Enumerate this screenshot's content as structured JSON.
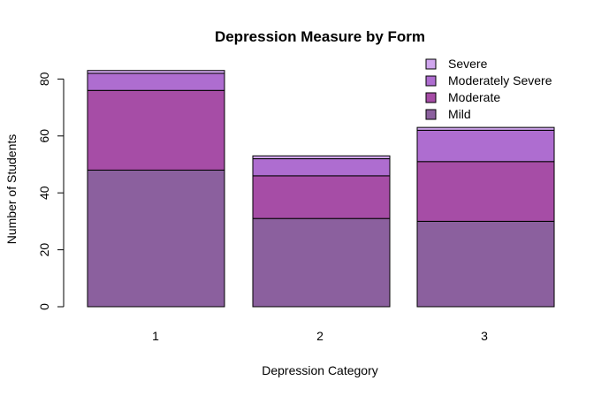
{
  "chart_data": {
    "type": "bar",
    "stacked": true,
    "title": "Depression Measure by Form",
    "xlabel": "Depression Category",
    "ylabel": "Number of Students",
    "categories": [
      "1",
      "2",
      "3"
    ],
    "ylim": [
      0,
      85
    ],
    "yticks": [
      "0",
      "20",
      "40",
      "60",
      "80"
    ],
    "series": [
      {
        "name": "Mild",
        "values": [
          48,
          31,
          30
        ],
        "color": "#8B609E"
      },
      {
        "name": "Moderate",
        "values": [
          28,
          15,
          21
        ],
        "color": "#A64DA6"
      },
      {
        "name": "Moderately Severe",
        "values": [
          6,
          6,
          11
        ],
        "color": "#AE6DD0"
      },
      {
        "name": "Severe",
        "values": [
          1,
          1,
          1
        ],
        "color": "#D0A6EE"
      }
    ],
    "legend_order": [
      "Severe",
      "Moderately Severe",
      "Moderate",
      "Mild"
    ],
    "legend_position": "top-right",
    "grid": false
  }
}
